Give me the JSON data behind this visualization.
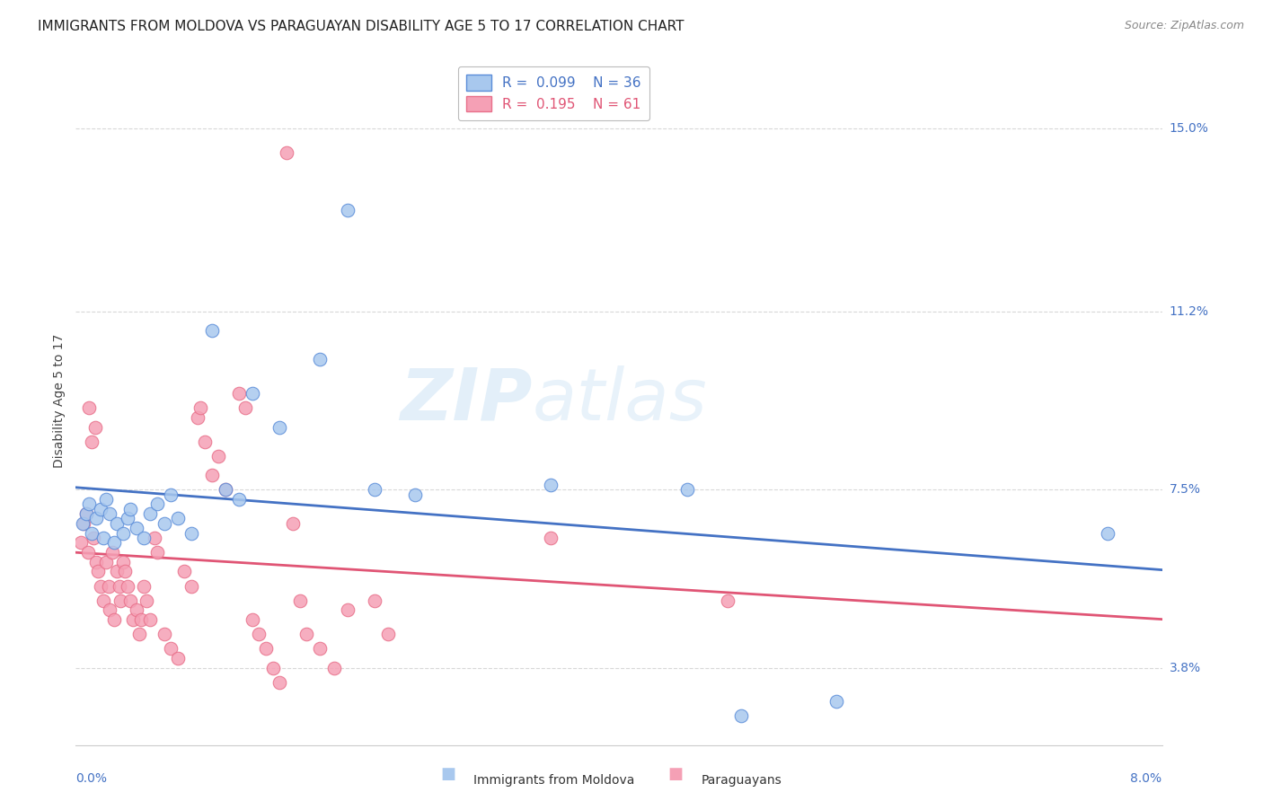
{
  "title": "IMMIGRANTS FROM MOLDOVA VS PARAGUAYAN DISABILITY AGE 5 TO 17 CORRELATION CHART",
  "source": "Source: ZipAtlas.com",
  "ylabel": "Disability Age 5 to 17",
  "yticks": [
    3.8,
    7.5,
    11.2,
    15.0
  ],
  "ytick_labels": [
    "3.8%",
    "7.5%",
    "11.2%",
    "15.0%"
  ],
  "xmin": 0.0,
  "xmax": 8.0,
  "ymin": 2.2,
  "ymax": 16.5,
  "watermark_zip": "ZIP",
  "watermark_atlas": "atlas",
  "blue_scatter": [
    [
      0.05,
      6.8
    ],
    [
      0.08,
      7.0
    ],
    [
      0.1,
      7.2
    ],
    [
      0.12,
      6.6
    ],
    [
      0.15,
      6.9
    ],
    [
      0.18,
      7.1
    ],
    [
      0.2,
      6.5
    ],
    [
      0.22,
      7.3
    ],
    [
      0.25,
      7.0
    ],
    [
      0.28,
      6.4
    ],
    [
      0.3,
      6.8
    ],
    [
      0.35,
      6.6
    ],
    [
      0.38,
      6.9
    ],
    [
      0.4,
      7.1
    ],
    [
      0.45,
      6.7
    ],
    [
      0.5,
      6.5
    ],
    [
      0.55,
      7.0
    ],
    [
      0.6,
      7.2
    ],
    [
      0.65,
      6.8
    ],
    [
      0.7,
      7.4
    ],
    [
      0.75,
      6.9
    ],
    [
      0.85,
      6.6
    ],
    [
      1.0,
      10.8
    ],
    [
      1.1,
      7.5
    ],
    [
      1.2,
      7.3
    ],
    [
      1.3,
      9.5
    ],
    [
      1.5,
      8.8
    ],
    [
      1.8,
      10.2
    ],
    [
      2.0,
      13.3
    ],
    [
      2.2,
      7.5
    ],
    [
      2.5,
      7.4
    ],
    [
      3.5,
      7.6
    ],
    [
      4.5,
      7.5
    ],
    [
      4.9,
      2.8
    ],
    [
      5.6,
      3.1
    ],
    [
      7.6,
      6.6
    ]
  ],
  "pink_scatter": [
    [
      0.04,
      6.4
    ],
    [
      0.06,
      6.8
    ],
    [
      0.08,
      7.0
    ],
    [
      0.09,
      6.2
    ],
    [
      0.1,
      9.2
    ],
    [
      0.12,
      8.5
    ],
    [
      0.13,
      6.5
    ],
    [
      0.14,
      8.8
    ],
    [
      0.15,
      6.0
    ],
    [
      0.16,
      5.8
    ],
    [
      0.18,
      5.5
    ],
    [
      0.2,
      5.2
    ],
    [
      0.22,
      6.0
    ],
    [
      0.24,
      5.5
    ],
    [
      0.25,
      5.0
    ],
    [
      0.27,
      6.2
    ],
    [
      0.28,
      4.8
    ],
    [
      0.3,
      5.8
    ],
    [
      0.32,
      5.5
    ],
    [
      0.33,
      5.2
    ],
    [
      0.35,
      6.0
    ],
    [
      0.36,
      5.8
    ],
    [
      0.38,
      5.5
    ],
    [
      0.4,
      5.2
    ],
    [
      0.42,
      4.8
    ],
    [
      0.45,
      5.0
    ],
    [
      0.47,
      4.5
    ],
    [
      0.48,
      4.8
    ],
    [
      0.5,
      5.5
    ],
    [
      0.52,
      5.2
    ],
    [
      0.55,
      4.8
    ],
    [
      0.58,
      6.5
    ],
    [
      0.6,
      6.2
    ],
    [
      0.65,
      4.5
    ],
    [
      0.7,
      4.2
    ],
    [
      0.75,
      4.0
    ],
    [
      0.8,
      5.8
    ],
    [
      0.85,
      5.5
    ],
    [
      0.9,
      9.0
    ],
    [
      0.92,
      9.2
    ],
    [
      0.95,
      8.5
    ],
    [
      1.0,
      7.8
    ],
    [
      1.05,
      8.2
    ],
    [
      1.1,
      7.5
    ],
    [
      1.2,
      9.5
    ],
    [
      1.25,
      9.2
    ],
    [
      1.3,
      4.8
    ],
    [
      1.35,
      4.5
    ],
    [
      1.4,
      4.2
    ],
    [
      1.45,
      3.8
    ],
    [
      1.5,
      3.5
    ],
    [
      1.55,
      14.5
    ],
    [
      1.6,
      6.8
    ],
    [
      1.65,
      5.2
    ],
    [
      1.7,
      4.5
    ],
    [
      1.8,
      4.2
    ],
    [
      1.9,
      3.8
    ],
    [
      2.0,
      5.0
    ],
    [
      2.2,
      5.2
    ],
    [
      2.3,
      4.5
    ],
    [
      3.5,
      6.5
    ],
    [
      4.8,
      5.2
    ]
  ],
  "blue_color": "#a8c8ee",
  "pink_color": "#f5a0b5",
  "blue_edge_color": "#5b8dd9",
  "pink_edge_color": "#e8708a",
  "blue_line_color": "#4472c4",
  "pink_line_color": "#e05575",
  "grid_color": "#d8d8d8",
  "background_color": "#ffffff",
  "title_fontsize": 11,
  "source_fontsize": 9,
  "axis_label_fontsize": 10,
  "tick_fontsize": 10,
  "legend_fontsize": 11
}
